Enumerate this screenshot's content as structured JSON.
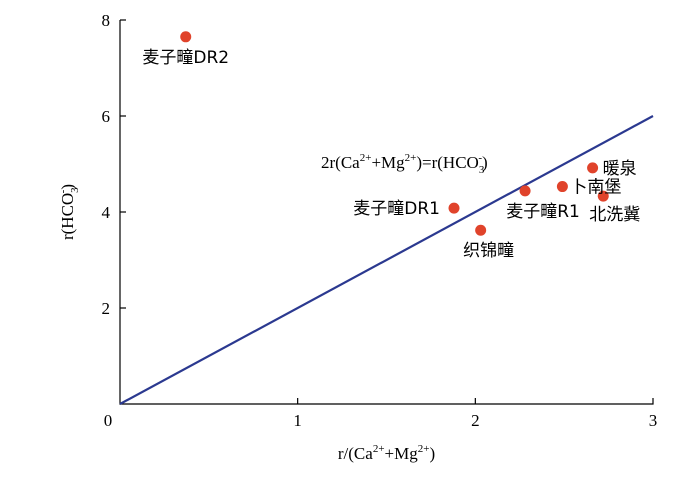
{
  "chart_data": {
    "type": "scatter",
    "xlabel": {
      "base": "r/(Ca",
      "sup1": "2+",
      "mid": "+Mg",
      "sup2": "2+",
      "end": ")"
    },
    "ylabel": {
      "base": "r(HCO",
      "sub": "3",
      "sup": "-",
      "end": ")"
    },
    "xlim": [
      0,
      3
    ],
    "ylim": [
      0,
      8
    ],
    "x_ticks": [
      {
        "value": 0,
        "label": "0"
      },
      {
        "value": 1,
        "label": "1"
      },
      {
        "value": 2,
        "label": "2"
      },
      {
        "value": 3,
        "label": "3"
      }
    ],
    "y_ticks": [
      {
        "value": 2,
        "label": "2"
      },
      {
        "value": 4,
        "label": "4"
      },
      {
        "value": 6,
        "label": "6"
      },
      {
        "value": 8,
        "label": "8"
      }
    ],
    "reference_line": {
      "points": [
        [
          0,
          0
        ],
        [
          3,
          6
        ]
      ],
      "color": "#2b3990",
      "label": {
        "p1": "2r(Ca",
        "s1": "2+",
        "p2": "+Mg",
        "s2": "2+",
        "p3": ")=r(HCO",
        "sub": "3",
        "sup": "-",
        "p4": ")"
      }
    },
    "point_color": "#e0432b",
    "points": [
      {
        "name": "麦子疃DR2",
        "x": 0.37,
        "y": 7.65
      },
      {
        "name": "麦子疃DR1",
        "x": 1.88,
        "y": 4.08
      },
      {
        "name": "织锦疃",
        "x": 2.03,
        "y": 3.62
      },
      {
        "name": "麦子疃R1",
        "x": 2.28,
        "y": 4.44
      },
      {
        "name": "卜南堡",
        "x": 2.49,
        "y": 4.53
      },
      {
        "name": "暖泉",
        "x": 2.66,
        "y": 4.92
      },
      {
        "name": "北洗冀",
        "x": 2.72,
        "y": 4.33
      }
    ]
  }
}
